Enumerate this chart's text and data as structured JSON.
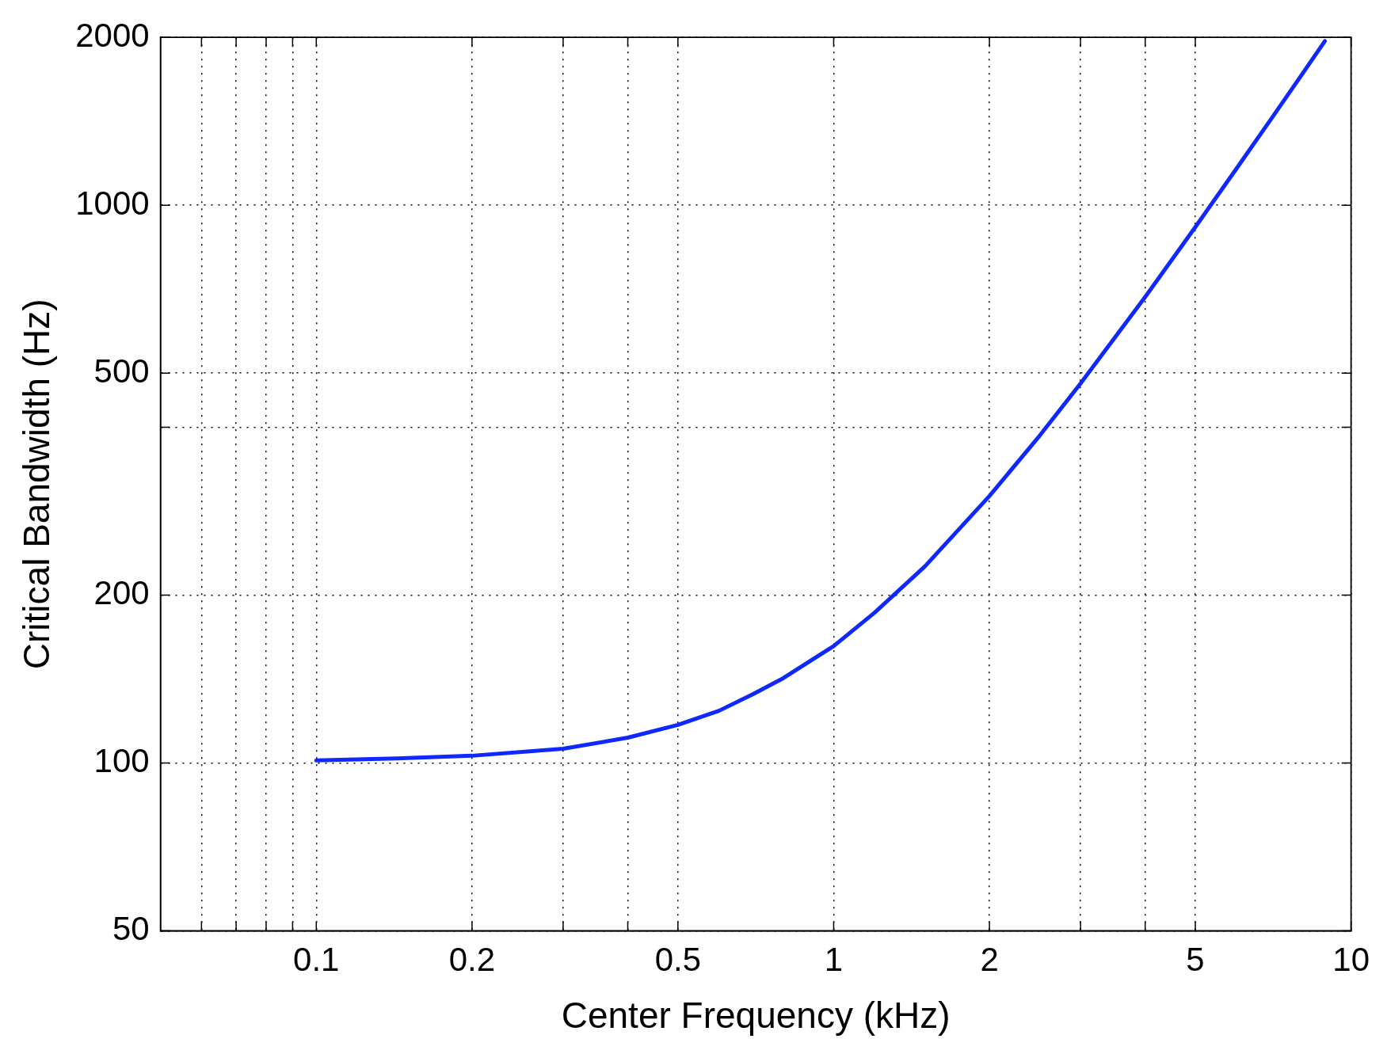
{
  "chart_data": {
    "type": "line",
    "xlabel": "Center Frequency (kHz)",
    "ylabel": "Critical Bandwidth (Hz)",
    "log": "xy",
    "grid": true,
    "legend": false,
    "marker": "none",
    "line_style": "solid",
    "xlim": [
      0.05,
      10
    ],
    "ylim": [
      50,
      2000
    ],
    "xticks": [
      {
        "value": 0.06,
        "label": null
      },
      {
        "value": 0.07,
        "label": null
      },
      {
        "value": 0.08,
        "label": null
      },
      {
        "value": 0.09,
        "label": null
      },
      0.1,
      0.2,
      {
        "value": 0.3,
        "label": null
      },
      {
        "value": 0.4,
        "label": null
      },
      0.5,
      1,
      2,
      {
        "value": 3,
        "label": null
      },
      {
        "value": 4,
        "label": null
      },
      5,
      10
    ],
    "yticks": [
      50,
      100,
      200,
      {
        "value": 400,
        "label": null
      },
      500,
      1000,
      2000
    ],
    "series": [
      {
        "color": "#0f28ff",
        "x": [
          0.1,
          0.15,
          0.2,
          0.3,
          0.4,
          0.5,
          0.6,
          0.7,
          0.8,
          1,
          1.2,
          1.5,
          2,
          2.5,
          3,
          4,
          5,
          6,
          7,
          8,
          8.9
        ],
        "values": [
          101,
          102,
          103,
          106,
          111,
          117,
          124,
          133,
          142,
          162,
          186,
          225,
          301,
          386,
          479,
          685,
          914,
          1162,
          1426,
          1706,
          1970
        ]
      }
    ]
  }
}
